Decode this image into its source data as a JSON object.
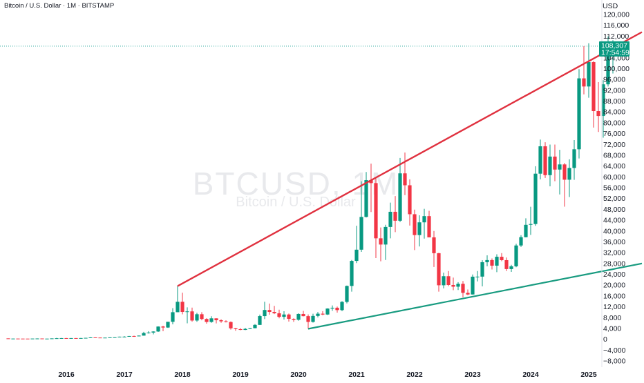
{
  "header": {
    "title": "Bitcoin / U.S. Dollar · 1M · BITSTAMP"
  },
  "watermark": {
    "symbol": "BTCUSD, 1M",
    "name": "Bitcoin / U.S. Dollar"
  },
  "price_tag": {
    "price": "108,307",
    "countdown": "17:54:59"
  },
  "colors": {
    "up": "#089981",
    "down": "#f23645",
    "resistance": "#e0313f",
    "support": "#189b80",
    "price_line": "#26a69a",
    "tag": "#089981"
  },
  "chart_data": {
    "type": "candlestick",
    "title": "Bitcoin / U.S. Dollar · 1M · BITSTAMP",
    "ylabel": "USD",
    "ylim": [
      -8000,
      120000
    ],
    "yticks": [
      -8000,
      -4000,
      0,
      4000,
      8000,
      12000,
      16000,
      20000,
      24000,
      28000,
      32000,
      36000,
      40000,
      44000,
      48000,
      52000,
      56000,
      60000,
      64000,
      68000,
      72000,
      76000,
      80000,
      84000,
      88000,
      92000,
      96000,
      100000,
      104000,
      108000,
      112000,
      116000,
      120000
    ],
    "ytick_labels": [
      "−8,000",
      "−4,000",
      "0",
      "4,000",
      "8,000",
      "12,000",
      "16,000",
      "20,000",
      "24,000",
      "28,000",
      "32,000",
      "36,000",
      "40,000",
      "44,000",
      "48,000",
      "52,000",
      "56,000",
      "60,000",
      "64,000",
      "68,000",
      "72,000",
      "76,000",
      "80,000",
      "84,000",
      "88,000",
      "92,000",
      "96,000",
      "100,000",
      "104,000",
      "108,000",
      "112,000",
      "116,000",
      "120,000"
    ],
    "xticks": [
      "2016",
      "2017",
      "2018",
      "2019",
      "2020",
      "2021",
      "2022",
      "2023",
      "2024",
      "2025"
    ],
    "current_price": 108307,
    "candles": [
      [
        "2015-01",
        320,
        320,
        180,
        218
      ],
      [
        "2015-02",
        218,
        265,
        200,
        254
      ],
      [
        "2015-03",
        254,
        300,
        235,
        244
      ],
      [
        "2015-04",
        244,
        262,
        215,
        236
      ],
      [
        "2015-05",
        236,
        247,
        225,
        230
      ],
      [
        "2015-06",
        230,
        268,
        218,
        263
      ],
      [
        "2015-07",
        263,
        317,
        253,
        284
      ],
      [
        "2015-08",
        284,
        286,
        198,
        230
      ],
      [
        "2015-09",
        230,
        244,
        225,
        236
      ],
      [
        "2015-10",
        236,
        327,
        234,
        314
      ],
      [
        "2015-11",
        314,
        495,
        305,
        377
      ],
      [
        "2015-12",
        377,
        466,
        350,
        430
      ],
      [
        "2016-01",
        430,
        463,
        355,
        369
      ],
      [
        "2016-02",
        369,
        445,
        365,
        437
      ],
      [
        "2016-03",
        437,
        439,
        395,
        416
      ],
      [
        "2016-04",
        416,
        467,
        415,
        448
      ],
      [
        "2016-05",
        448,
        548,
        435,
        531
      ],
      [
        "2016-06",
        531,
        780,
        525,
        673
      ],
      [
        "2016-07",
        673,
        705,
        605,
        624
      ],
      [
        "2016-08",
        624,
        625,
        470,
        573
      ],
      [
        "2016-09",
        573,
        620,
        570,
        608
      ],
      [
        "2016-10",
        608,
        715,
        605,
        700
      ],
      [
        "2016-11",
        700,
        755,
        680,
        745
      ],
      [
        "2016-12",
        745,
        975,
        740,
        960
      ],
      [
        "2017-01",
        960,
        1150,
        750,
        965
      ],
      [
        "2017-02",
        965,
        1210,
        930,
        1190
      ],
      [
        "2017-03",
        1190,
        1350,
        890,
        1080
      ],
      [
        "2017-04",
        1080,
        1400,
        1050,
        1350
      ],
      [
        "2017-05",
        1350,
        2750,
        1340,
        2300
      ],
      [
        "2017-06",
        2300,
        3000,
        2100,
        2480
      ],
      [
        "2017-07",
        2480,
        2950,
        1830,
        2870
      ],
      [
        "2017-08",
        2870,
        4780,
        2700,
        4700
      ],
      [
        "2017-09",
        4700,
        5000,
        2980,
        4340
      ],
      [
        "2017-10",
        4340,
        6450,
        4200,
        6450
      ],
      [
        "2017-11",
        6450,
        11500,
        5500,
        10000
      ],
      [
        "2017-12",
        10000,
        19650,
        10000,
        13850
      ],
      [
        "2018-01",
        13850,
        17200,
        9200,
        10100
      ],
      [
        "2018-02",
        10100,
        11800,
        5900,
        10300
      ],
      [
        "2018-03",
        10300,
        11700,
        6500,
        6930
      ],
      [
        "2018-04",
        6930,
        9800,
        6450,
        9250
      ],
      [
        "2018-05",
        9250,
        10000,
        7000,
        7500
      ],
      [
        "2018-06",
        7500,
        7770,
        5780,
        6390
      ],
      [
        "2018-07",
        6390,
        8500,
        6100,
        7730
      ],
      [
        "2018-08",
        7730,
        7750,
        5880,
        7030
      ],
      [
        "2018-09",
        7030,
        7400,
        6100,
        6630
      ],
      [
        "2018-10",
        6630,
        7000,
        6200,
        6370
      ],
      [
        "2018-11",
        6370,
        6600,
        3560,
        4040
      ],
      [
        "2018-12",
        4040,
        4250,
        3120,
        3740
      ],
      [
        "2019-01",
        3740,
        4100,
        3350,
        3460
      ],
      [
        "2019-02",
        3460,
        4210,
        3390,
        3830
      ],
      [
        "2019-03",
        3830,
        4100,
        3720,
        4100
      ],
      [
        "2019-04",
        4100,
        5600,
        4060,
        5310
      ],
      [
        "2019-05",
        5310,
        9100,
        5300,
        8560
      ],
      [
        "2019-06",
        8560,
        13880,
        7450,
        10820
      ],
      [
        "2019-07",
        10820,
        13200,
        9080,
        10090
      ],
      [
        "2019-08",
        10090,
        12330,
        9320,
        9590
      ],
      [
        "2019-09",
        9590,
        10920,
        7750,
        8290
      ],
      [
        "2019-10",
        8290,
        10370,
        7300,
        9150
      ],
      [
        "2019-11",
        9150,
        9510,
        6520,
        7550
      ],
      [
        "2019-12",
        7550,
        7750,
        6430,
        7190
      ],
      [
        "2020-01",
        7190,
        9580,
        6850,
        9350
      ],
      [
        "2020-02",
        9350,
        10500,
        8450,
        8540
      ],
      [
        "2020-03",
        8540,
        9180,
        3860,
        6410
      ],
      [
        "2020-04",
        6410,
        9450,
        6150,
        8620
      ],
      [
        "2020-05",
        8620,
        10080,
        8100,
        9450
      ],
      [
        "2020-06",
        9450,
        10400,
        8900,
        9140
      ],
      [
        "2020-07",
        9140,
        11450,
        8970,
        11350
      ],
      [
        "2020-08",
        11350,
        12480,
        10520,
        11650
      ],
      [
        "2020-09",
        11650,
        12070,
        9850,
        10780
      ],
      [
        "2020-10",
        10780,
        14100,
        10370,
        13800
      ],
      [
        "2020-11",
        13800,
        19850,
        13250,
        19700
      ],
      [
        "2020-12",
        19700,
        29300,
        17600,
        28950
      ],
      [
        "2021-01",
        28950,
        41950,
        28150,
        33100
      ],
      [
        "2021-02",
        33100,
        58350,
        32300,
        45200
      ],
      [
        "2021-03",
        45200,
        61800,
        45000,
        58800
      ],
      [
        "2021-04",
        58800,
        64900,
        47000,
        57700
      ],
      [
        "2021-05",
        57700,
        59600,
        30000,
        37300
      ],
      [
        "2021-06",
        37300,
        41300,
        28800,
        35000
      ],
      [
        "2021-07",
        35000,
        42300,
        29300,
        41500
      ],
      [
        "2021-08",
        41500,
        50500,
        37300,
        47100
      ],
      [
        "2021-09",
        47100,
        52900,
        39600,
        43800
      ],
      [
        "2021-10",
        43800,
        67000,
        43300,
        61300
      ],
      [
        "2021-11",
        61300,
        69000,
        53250,
        56900
      ],
      [
        "2021-12",
        56900,
        59100,
        42000,
        46200
      ],
      [
        "2022-01",
        46200,
        47900,
        32950,
        38500
      ],
      [
        "2022-02",
        38500,
        45800,
        34300,
        43200
      ],
      [
        "2022-03",
        43200,
        48200,
        37200,
        45500
      ],
      [
        "2022-04",
        45500,
        47450,
        37700,
        37650
      ],
      [
        "2022-05",
        37650,
        40000,
        26700,
        31800
      ],
      [
        "2022-06",
        31800,
        31950,
        17600,
        19950
      ],
      [
        "2022-07",
        19950,
        24600,
        18800,
        23300
      ],
      [
        "2022-08",
        23300,
        25200,
        19600,
        20050
      ],
      [
        "2022-09",
        20050,
        22800,
        18150,
        19430
      ],
      [
        "2022-10",
        19430,
        21100,
        18200,
        20500
      ],
      [
        "2022-11",
        20500,
        21500,
        15480,
        17150
      ],
      [
        "2022-12",
        17150,
        18400,
        16300,
        16550
      ],
      [
        "2023-01",
        16550,
        23950,
        16500,
        23130
      ],
      [
        "2023-02",
        23130,
        25200,
        21400,
        23150
      ],
      [
        "2023-03",
        23150,
        29200,
        19550,
        28470
      ],
      [
        "2023-04",
        28470,
        31000,
        26950,
        29250
      ],
      [
        "2023-05",
        29250,
        29850,
        25800,
        27200
      ],
      [
        "2023-06",
        27200,
        31400,
        24800,
        30480
      ],
      [
        "2023-07",
        30480,
        31850,
        28850,
        29230
      ],
      [
        "2023-08",
        29230,
        30200,
        25200,
        25940
      ],
      [
        "2023-09",
        25940,
        27500,
        24900,
        26960
      ],
      [
        "2023-10",
        26960,
        35280,
        26600,
        34650
      ],
      [
        "2023-11",
        34650,
        38450,
        34100,
        37720
      ],
      [
        "2023-12",
        37720,
        44700,
        37650,
        42280
      ],
      [
        "2024-01",
        42280,
        48950,
        38550,
        42580
      ],
      [
        "2024-02",
        42580,
        63950,
        41900,
        61180
      ],
      [
        "2024-03",
        61180,
        73800,
        59100,
        71300
      ],
      [
        "2024-04",
        71300,
        72800,
        59600,
        60650
      ],
      [
        "2024-05",
        60650,
        71950,
        56500,
        67500
      ],
      [
        "2024-06",
        67500,
        71950,
        58400,
        62700
      ],
      [
        "2024-07",
        62700,
        70000,
        53500,
        64600
      ],
      [
        "2024-08",
        64600,
        65100,
        49000,
        58950
      ],
      [
        "2024-09",
        58950,
        66500,
        52550,
        63300
      ],
      [
        "2024-10",
        63300,
        73600,
        58900,
        70200
      ],
      [
        "2024-11",
        70200,
        99800,
        66800,
        96400
      ],
      [
        "2024-12",
        96400,
        108300,
        90500,
        93400
      ],
      [
        "2025-01",
        93400,
        109400,
        89250,
        102400
      ],
      [
        "2025-02",
        102400,
        102800,
        78200,
        84300
      ],
      [
        "2025-03",
        84300,
        95000,
        76600,
        82500
      ],
      [
        "2025-04",
        82500,
        95750,
        74500,
        94200
      ],
      [
        "2025-05",
        94200,
        111900,
        93400,
        104600
      ],
      [
        "2025-06",
        104600,
        110500,
        98200,
        108307
      ]
    ],
    "trendlines": [
      {
        "role": "resistance",
        "from": [
          "2017-12",
          19650
        ],
        "to": [
          "2025-12",
          113500
        ]
      },
      {
        "role": "support",
        "from": [
          "2020-03",
          3860
        ],
        "to": [
          "2025-12",
          28000
        ]
      }
    ]
  }
}
